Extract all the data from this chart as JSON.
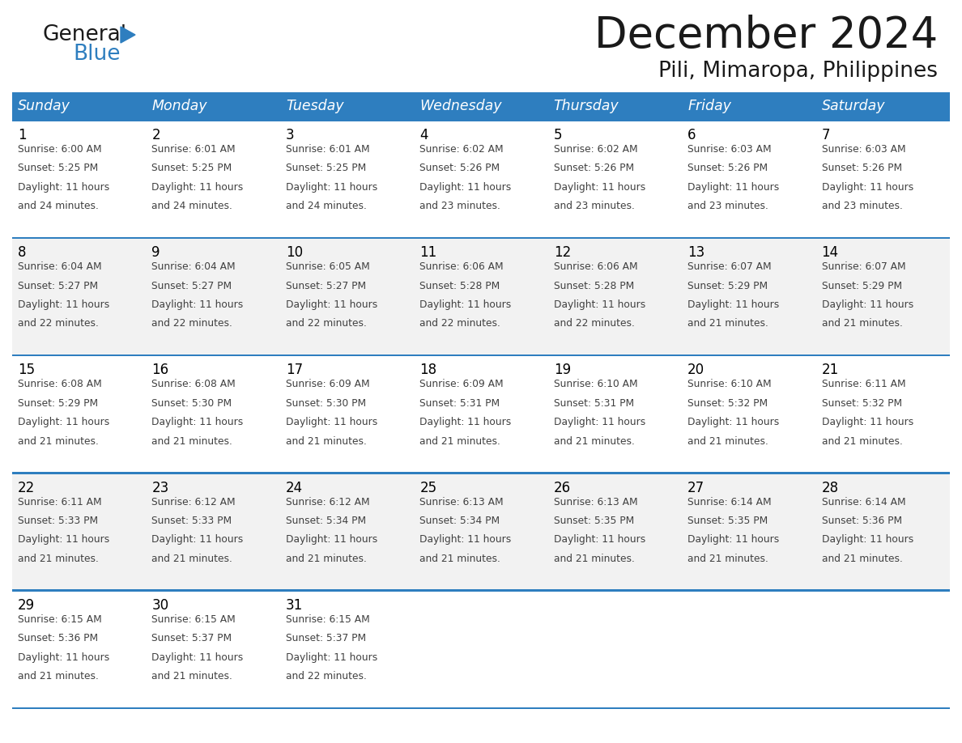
{
  "title": "December 2024",
  "subtitle": "Pili, Mimaropa, Philippines",
  "days_of_week": [
    "Sunday",
    "Monday",
    "Tuesday",
    "Wednesday",
    "Thursday",
    "Friday",
    "Saturday"
  ],
  "header_bg": "#2E7EBF",
  "header_text_color": "#FFFFFF",
  "cell_border_color": "#2E7EBF",
  "day_number_color": "#000000",
  "info_text_color": "#404040",
  "title_color": "#1a1a1a",
  "logo_color1": "#1a1a1a",
  "logo_color2": "#2E7EBF",
  "triangle_color": "#2E7EBF",
  "calendar_data": [
    [
      {
        "day": 1,
        "sunrise": "6:00 AM",
        "sunset": "5:25 PM",
        "daylight_hours": 11,
        "daylight_minutes": 24
      },
      {
        "day": 2,
        "sunrise": "6:01 AM",
        "sunset": "5:25 PM",
        "daylight_hours": 11,
        "daylight_minutes": 24
      },
      {
        "day": 3,
        "sunrise": "6:01 AM",
        "sunset": "5:25 PM",
        "daylight_hours": 11,
        "daylight_minutes": 24
      },
      {
        "day": 4,
        "sunrise": "6:02 AM",
        "sunset": "5:26 PM",
        "daylight_hours": 11,
        "daylight_minutes": 23
      },
      {
        "day": 5,
        "sunrise": "6:02 AM",
        "sunset": "5:26 PM",
        "daylight_hours": 11,
        "daylight_minutes": 23
      },
      {
        "day": 6,
        "sunrise": "6:03 AM",
        "sunset": "5:26 PM",
        "daylight_hours": 11,
        "daylight_minutes": 23
      },
      {
        "day": 7,
        "sunrise": "6:03 AM",
        "sunset": "5:26 PM",
        "daylight_hours": 11,
        "daylight_minutes": 23
      }
    ],
    [
      {
        "day": 8,
        "sunrise": "6:04 AM",
        "sunset": "5:27 PM",
        "daylight_hours": 11,
        "daylight_minutes": 22
      },
      {
        "day": 9,
        "sunrise": "6:04 AM",
        "sunset": "5:27 PM",
        "daylight_hours": 11,
        "daylight_minutes": 22
      },
      {
        "day": 10,
        "sunrise": "6:05 AM",
        "sunset": "5:27 PM",
        "daylight_hours": 11,
        "daylight_minutes": 22
      },
      {
        "day": 11,
        "sunrise": "6:06 AM",
        "sunset": "5:28 PM",
        "daylight_hours": 11,
        "daylight_minutes": 22
      },
      {
        "day": 12,
        "sunrise": "6:06 AM",
        "sunset": "5:28 PM",
        "daylight_hours": 11,
        "daylight_minutes": 22
      },
      {
        "day": 13,
        "sunrise": "6:07 AM",
        "sunset": "5:29 PM",
        "daylight_hours": 11,
        "daylight_minutes": 21
      },
      {
        "day": 14,
        "sunrise": "6:07 AM",
        "sunset": "5:29 PM",
        "daylight_hours": 11,
        "daylight_minutes": 21
      }
    ],
    [
      {
        "day": 15,
        "sunrise": "6:08 AM",
        "sunset": "5:29 PM",
        "daylight_hours": 11,
        "daylight_minutes": 21
      },
      {
        "day": 16,
        "sunrise": "6:08 AM",
        "sunset": "5:30 PM",
        "daylight_hours": 11,
        "daylight_minutes": 21
      },
      {
        "day": 17,
        "sunrise": "6:09 AM",
        "sunset": "5:30 PM",
        "daylight_hours": 11,
        "daylight_minutes": 21
      },
      {
        "day": 18,
        "sunrise": "6:09 AM",
        "sunset": "5:31 PM",
        "daylight_hours": 11,
        "daylight_minutes": 21
      },
      {
        "day": 19,
        "sunrise": "6:10 AM",
        "sunset": "5:31 PM",
        "daylight_hours": 11,
        "daylight_minutes": 21
      },
      {
        "day": 20,
        "sunrise": "6:10 AM",
        "sunset": "5:32 PM",
        "daylight_hours": 11,
        "daylight_minutes": 21
      },
      {
        "day": 21,
        "sunrise": "6:11 AM",
        "sunset": "5:32 PM",
        "daylight_hours": 11,
        "daylight_minutes": 21
      }
    ],
    [
      {
        "day": 22,
        "sunrise": "6:11 AM",
        "sunset": "5:33 PM",
        "daylight_hours": 11,
        "daylight_minutes": 21
      },
      {
        "day": 23,
        "sunrise": "6:12 AM",
        "sunset": "5:33 PM",
        "daylight_hours": 11,
        "daylight_minutes": 21
      },
      {
        "day": 24,
        "sunrise": "6:12 AM",
        "sunset": "5:34 PM",
        "daylight_hours": 11,
        "daylight_minutes": 21
      },
      {
        "day": 25,
        "sunrise": "6:13 AM",
        "sunset": "5:34 PM",
        "daylight_hours": 11,
        "daylight_minutes": 21
      },
      {
        "day": 26,
        "sunrise": "6:13 AM",
        "sunset": "5:35 PM",
        "daylight_hours": 11,
        "daylight_minutes": 21
      },
      {
        "day": 27,
        "sunrise": "6:14 AM",
        "sunset": "5:35 PM",
        "daylight_hours": 11,
        "daylight_minutes": 21
      },
      {
        "day": 28,
        "sunrise": "6:14 AM",
        "sunset": "5:36 PM",
        "daylight_hours": 11,
        "daylight_minutes": 21
      }
    ],
    [
      {
        "day": 29,
        "sunrise": "6:15 AM",
        "sunset": "5:36 PM",
        "daylight_hours": 11,
        "daylight_minutes": 21
      },
      {
        "day": 30,
        "sunrise": "6:15 AM",
        "sunset": "5:37 PM",
        "daylight_hours": 11,
        "daylight_minutes": 21
      },
      {
        "day": 31,
        "sunrise": "6:15 AM",
        "sunset": "5:37 PM",
        "daylight_hours": 11,
        "daylight_minutes": 22
      },
      null,
      null,
      null,
      null
    ]
  ]
}
